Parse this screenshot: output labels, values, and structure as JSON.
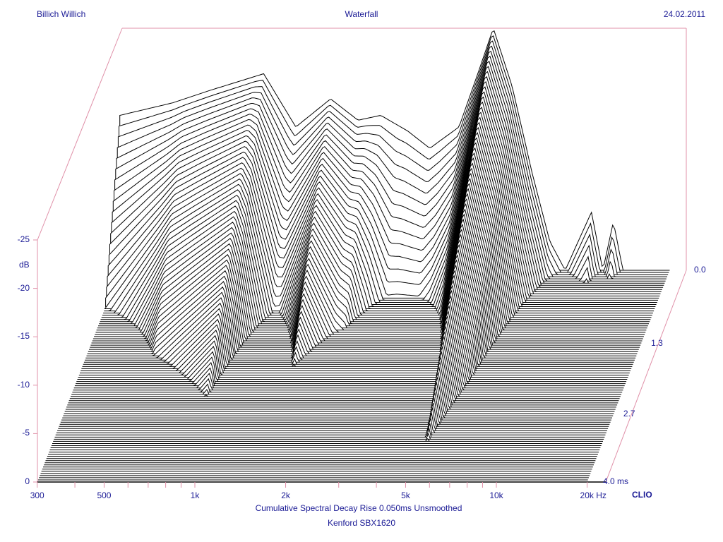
{
  "header": {
    "left": "Billich Willich",
    "center": "Waterfall",
    "right": "24.02.2011"
  },
  "footer": {
    "caption": "Cumulative Spectral Decay   Rise 0.050ms   Unsmoothed",
    "device": "Kenford SBX1620",
    "brand": "CLIO"
  },
  "colors": {
    "text": "#1c1c96",
    "axis": "#e090a8",
    "trace": "#000000"
  },
  "chart_data": {
    "type": "waterfall",
    "title": "Waterfall",
    "xlabel": "Hz",
    "ylabel": "dB",
    "zlabel": "ms",
    "xscale": "log",
    "xlim": [
      300,
      20000
    ],
    "ylim": [
      -25,
      0
    ],
    "time_range_ms": [
      0,
      4.0
    ],
    "slice_count": 100,
    "x_ticks": [
      {
        "v": 300,
        "label": "300"
      },
      {
        "v": 500,
        "label": "500"
      },
      {
        "v": 1000,
        "label": "1k"
      },
      {
        "v": 2000,
        "label": "2k"
      },
      {
        "v": 5000,
        "label": "5k"
      },
      {
        "v": 10000,
        "label": "10k"
      },
      {
        "v": 20000,
        "label": "20k Hz"
      }
    ],
    "y_ticks": [
      {
        "v": 0,
        "label": "0"
      },
      {
        "v": -5,
        "label": "-5"
      },
      {
        "v": -10,
        "label": "-10"
      },
      {
        "v": -15,
        "label": "-15"
      },
      {
        "v": -20,
        "label": "-20"
      },
      {
        "v": -25,
        "label": "-25"
      }
    ],
    "time_ticks": [
      {
        "v": 0,
        "label": "0.0"
      },
      {
        "v": 1.33,
        "label": "1.3"
      },
      {
        "v": 2.67,
        "label": "2.7"
      },
      {
        "v": 4.0,
        "label": "4.0  ms"
      }
    ],
    "initial_response_db": [
      [
        300,
        -9
      ],
      [
        450,
        -7.7
      ],
      [
        600,
        -6.4
      ],
      [
        900,
        -4.7
      ],
      [
        1150,
        -10.2
      ],
      [
        1500,
        -7.3
      ],
      [
        1850,
        -9.5
      ],
      [
        2200,
        -9
      ],
      [
        2700,
        -10.6
      ],
      [
        3200,
        -12.4
      ],
      [
        4000,
        -10.2
      ],
      [
        4700,
        -4
      ],
      [
        5200,
        0
      ],
      [
        6000,
        -6
      ],
      [
        7000,
        -15
      ],
      [
        8000,
        -22
      ],
      [
        9000,
        -25
      ],
      [
        11000,
        -19
      ],
      [
        12000,
        -25
      ],
      [
        13000,
        -20
      ],
      [
        14000,
        -25
      ],
      [
        20000,
        -25
      ]
    ],
    "decay_rate_db_per_ms": [
      [
        300,
        22
      ],
      [
        500,
        11
      ],
      [
        850,
        8.3
      ],
      [
        1100,
        20
      ],
      [
        1500,
        9.5
      ],
      [
        2000,
        14
      ],
      [
        2500,
        28
      ],
      [
        3500,
        22
      ],
      [
        4700,
        10
      ],
      [
        5200,
        7.5
      ],
      [
        6000,
        9
      ],
      [
        8000,
        15
      ],
      [
        12000,
        25
      ],
      [
        20000,
        30
      ]
    ]
  }
}
